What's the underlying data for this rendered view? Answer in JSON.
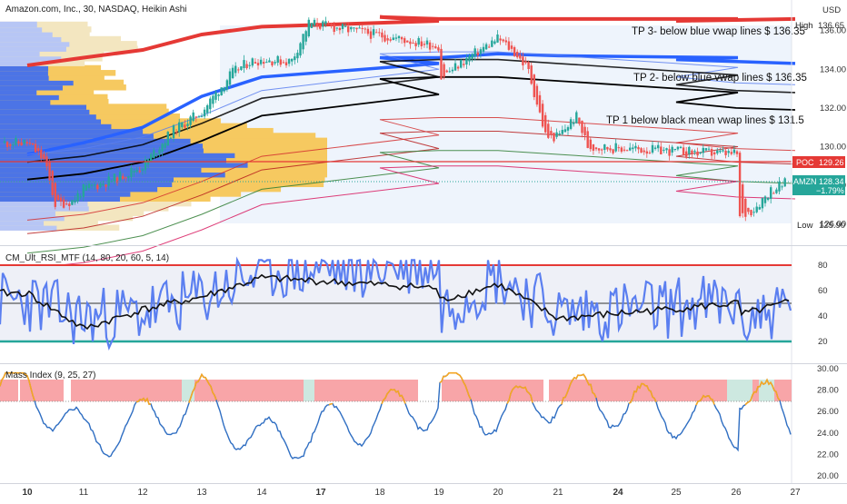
{
  "header": {
    "title": "Amazon.com, Inc., 30, NASDAQ, Heikin Ashi",
    "currency": "USD"
  },
  "price_axis": {
    "ticks": [
      "136.00",
      "134.00",
      "132.00",
      "130.00",
      "128.00",
      "126.00"
    ]
  },
  "tags": {
    "high_label": "High",
    "high_value": "136.65",
    "poc_label": "POC",
    "poc_value": "129.26",
    "ticker_label": "AMZN",
    "last_price": "128.34",
    "change_pct": "−1.79%",
    "low_label": "Low",
    "low_value": "125.90"
  },
  "annotations": {
    "tp3": "TP 3- below blue vwap lines  $ 136.35",
    "tp2": "TP 2- below blue vwap lines  $ 136.35",
    "tp1": "TP 1 below black mean vwap lines  $ 131.5"
  },
  "indicators": {
    "rsi_title": "CM_Ult_RSI_MTF (14, 80, 20, 60, 5, 14)",
    "rsi_ticks": [
      "80",
      "60",
      "40",
      "20"
    ],
    "mass_title": "Mass Index (9, 25, 27)",
    "mass_ticks": [
      "30.00",
      "28.00",
      "26.00",
      "24.00",
      "22.00",
      "20.00"
    ]
  },
  "x_axis": {
    "labels": [
      "10",
      "11",
      "12",
      "13",
      "14",
      "17",
      "18",
      "19",
      "20",
      "21",
      "24",
      "25",
      "26",
      "27"
    ]
  },
  "colors": {
    "up": "#26a69a",
    "down": "#ef5350",
    "vwap_red": "#e53935",
    "vwap_blue": "#2962ff",
    "vwap_black": "#000000",
    "rsi_line": "#5b7ff0",
    "mass_line": "#2f6ec2",
    "mass_signal": "#f5a623"
  },
  "chart_data": [
    {
      "type": "candlestick",
      "title": "Amazon.com, Inc., 30, NASDAQ, Heikin Ashi",
      "ylim": [
        125.0,
        137.3
      ],
      "x": [
        "10",
        "11",
        "12",
        "13",
        "14",
        "17",
        "18",
        "19",
        "20",
        "21",
        "24",
        "25",
        "26",
        "27"
      ],
      "close_path": [
        {
          "x": "10",
          "y": 130.2
        },
        {
          "x": "10.3",
          "y": 129.3
        },
        {
          "x": "10.5",
          "y": 127.0
        },
        {
          "x": "10.8",
          "y": 127.2
        },
        {
          "x": "11",
          "y": 127.8
        },
        {
          "x": "11.5",
          "y": 128.3
        },
        {
          "x": "12",
          "y": 129.0
        },
        {
          "x": "12.5",
          "y": 130.8
        },
        {
          "x": "13",
          "y": 131.8
        },
        {
          "x": "13.5",
          "y": 133.8
        },
        {
          "x": "13.8",
          "y": 134.4
        },
        {
          "x": "14",
          "y": 134.5
        },
        {
          "x": "14.5",
          "y": 134.4
        },
        {
          "x": "14.8",
          "y": 136.4
        },
        {
          "x": "17",
          "y": 135.2
        },
        {
          "x": "17.5",
          "y": 134.8
        },
        {
          "x": "18",
          "y": 134.1
        },
        {
          "x": "18.3",
          "y": 132.4
        },
        {
          "x": "18.6",
          "y": 133.0
        },
        {
          "x": "19",
          "y": 133.5
        },
        {
          "x": "19.5",
          "y": 134.6
        },
        {
          "x": "20",
          "y": 135.6
        },
        {
          "x": "20.3",
          "y": 134.8
        },
        {
          "x": "20.5",
          "y": 134.0
        },
        {
          "x": "20.8",
          "y": 130.5
        },
        {
          "x": "21",
          "y": 130.5
        },
        {
          "x": "21.3",
          "y": 131.6
        },
        {
          "x": "21.5",
          "y": 130.0
        },
        {
          "x": "24",
          "y": 129.6
        },
        {
          "x": "24.5",
          "y": 128.6
        },
        {
          "x": "25",
          "y": 129.0
        },
        {
          "x": "25.5",
          "y": 129.2
        },
        {
          "x": "26",
          "y": 126.2
        },
        {
          "x": "26.3",
          "y": 126.8
        },
        {
          "x": "26.6",
          "y": 127.8
        },
        {
          "x": "27",
          "y": 128.34
        }
      ],
      "levels": {
        "high": 136.65,
        "poc": 129.26,
        "last": 128.34,
        "low": 125.9
      },
      "series": [
        {
          "name": "VWAP upper band 3 (red)",
          "values": [
            134.2,
            134.6,
            135.0,
            135.8,
            136.2,
            136.5,
            136.7,
            136.6,
            136.6,
            136.6,
            136.6,
            136.5,
            136.55,
            136.6
          ]
        },
        {
          "name": "VWAP upper band 2 (blue)",
          "values": [
            129.6,
            130.2,
            131.0,
            132.6,
            133.6,
            134.3,
            134.6,
            134.6,
            134.8,
            134.7,
            134.6,
            134.5,
            134.4,
            134.3
          ]
        },
        {
          "name": "VWAP mean (black)",
          "values": [
            128.3,
            128.6,
            129.2,
            130.3,
            131.6,
            132.7,
            133.5,
            133.6,
            133.6,
            133.4,
            132.8,
            132.3,
            132.0,
            131.9
          ]
        }
      ]
    },
    {
      "type": "line",
      "title": "CM_Ult_RSI_MTF (14, 80, 20, 60, 5, 14)",
      "ylim": [
        15,
        85
      ],
      "x": [
        "10",
        "11",
        "12",
        "13",
        "14",
        "17",
        "18",
        "19",
        "20",
        "21",
        "24",
        "25",
        "26",
        "27"
      ],
      "levels": [
        80,
        20
      ],
      "series": [
        {
          "name": "RSI",
          "values": [
            58,
            30,
            45,
            55,
            70,
            62,
            48,
            52,
            65,
            38,
            50,
            45,
            40,
            52
          ]
        },
        {
          "name": "RSI MTF",
          "values": [
            52,
            38,
            42,
            55,
            76,
            80,
            55,
            46,
            72,
            42,
            50,
            40,
            36,
            50
          ]
        }
      ]
    },
    {
      "type": "line",
      "title": "Mass Index (9, 25, 27)",
      "ylim": [
        20,
        30
      ],
      "x": [
        "10",
        "11",
        "12",
        "13",
        "14",
        "17",
        "18",
        "19",
        "20",
        "21",
        "24",
        "25",
        "26",
        "27"
      ],
      "levels": [
        27
      ],
      "series": [
        {
          "name": "Mass Index",
          "values": [
            28.4,
            23.5,
            25.0,
            27.2,
            23.0,
            26.8,
            24.2,
            28.5,
            25.5,
            27.6,
            24.8,
            26.2,
            28.9,
            24.6
          ]
        }
      ]
    }
  ]
}
